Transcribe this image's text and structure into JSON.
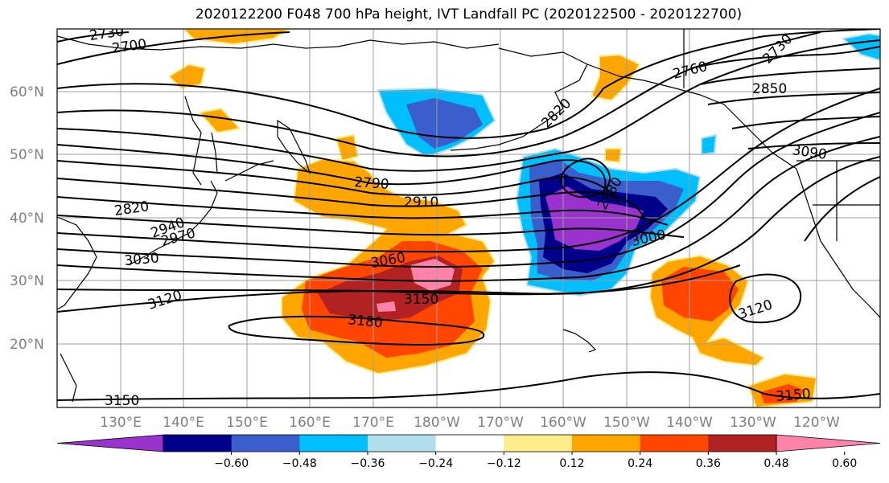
{
  "title": "2020122200 F048 700 hPa height, IVT Landfall PC (2020122500 - 2020122700)",
  "lat_labels": [
    "60°N",
    "50°N",
    "40°N",
    "30°N",
    "20°N"
  ],
  "lon_labels": [
    "130°E",
    "140°E",
    "150°E",
    "160°E",
    "170°E",
    "180°W",
    "170°W",
    "160°W",
    "150°W",
    "140°W",
    "130°W",
    "120°W"
  ],
  "contour_labels": [
    "2730",
    "2700",
    "2760",
    "2730",
    "2850",
    "2820",
    "3090",
    "2790",
    "2910",
    "2880",
    "2940",
    "2970",
    "3000",
    "3030",
    "3060",
    "3120",
    "3150",
    "3180",
    "3120",
    "3150",
    "3150",
    "2820"
  ],
  "colorbar": {
    "ticks": [
      "−0.60",
      "−0.48",
      "−0.36",
      "−0.24",
      "−0.12",
      "0.12",
      "0.24",
      "0.36",
      "0.48",
      "0.60"
    ],
    "colors": [
      "#9a32cd",
      "#00008b",
      "#3a5fcd",
      "#00bfff",
      "#b2dfee",
      "#ffffff",
      "#ffec8b",
      "#ffa500",
      "#ff4500",
      "#b22222",
      "#ff82ab"
    ]
  },
  "colors": {
    "orange": "#ffa500",
    "red_orange": "#ff4500",
    "dark_red": "#b22222",
    "pink": "#ff82ab",
    "light_yellow": "#ffec8b",
    "purple": "#9a32cd",
    "navy": "#00008b",
    "royal_blue": "#3a5fcd",
    "sky_blue": "#00bfff",
    "pale_blue": "#b2dfee"
  }
}
